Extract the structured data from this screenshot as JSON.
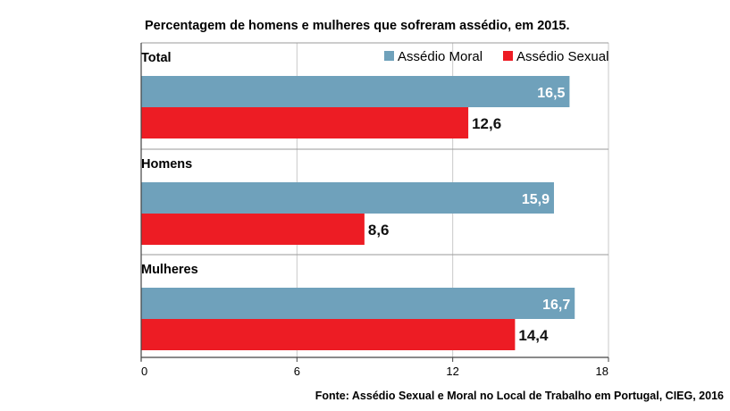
{
  "chart_data": {
    "type": "bar",
    "orientation": "horizontal",
    "title": "Percentagem de homens e mulheres que sofreram assédio, em 2015.",
    "categories": [
      "Total",
      "Homens",
      "Mulheres"
    ],
    "series": [
      {
        "name": "Assédio Moral",
        "color": "#6fa1bb",
        "values": [
          16.5,
          15.9,
          16.7
        ],
        "labels": [
          "16,5",
          "15,9",
          "16,7"
        ]
      },
      {
        "name": "Assédio Sexual",
        "color": "#ed1c24",
        "values": [
          12.6,
          8.6,
          14.4
        ],
        "labels": [
          "12,6",
          "8,6",
          "14,4"
        ]
      }
    ],
    "xlim": [
      0,
      18
    ],
    "xticks": [
      0,
      6,
      12,
      18
    ],
    "xtick_labels": [
      "0",
      "6",
      "12",
      "18"
    ],
    "grid": "vertical",
    "legend_position": "top-right",
    "source": "Fonte: Assédio Sexual e Moral no Local de Trabalho em Portugal, CIEG, 2016"
  }
}
